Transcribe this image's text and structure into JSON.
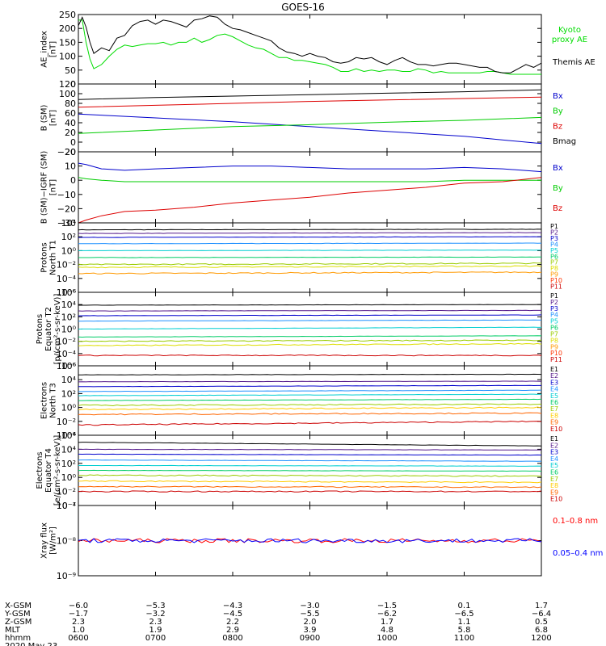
{
  "title": "GOES-16",
  "chart_data": [
    {
      "type": "line",
      "ylabel": "AE_index\n[nT]",
      "ylim": [
        0,
        250
      ],
      "ytick_labels": [
        "0",
        "50",
        "100",
        "150",
        "200",
        "250"
      ],
      "series": [
        {
          "name": "Kyoto proxy AE",
          "color": "#00dd00",
          "x": [
            600,
            605,
            610,
            615,
            620,
            630,
            640,
            650,
            660,
            670,
            680,
            690,
            700,
            710,
            720,
            730,
            740,
            750,
            760,
            770,
            780,
            790,
            800,
            810,
            820,
            830,
            840,
            850,
            860,
            870,
            880,
            890,
            900,
            910,
            920,
            930,
            940,
            950,
            960,
            970,
            980,
            990,
            1000,
            1010,
            1020,
            1030,
            1040,
            1050,
            1060,
            1070,
            1080,
            1090,
            1100,
            1110,
            1120,
            1130,
            1140,
            1150,
            1160,
            1170,
            1180,
            1190,
            1200
          ],
          "y": [
            230,
            230,
            150,
            90,
            55,
            70,
            100,
            125,
            140,
            135,
            140,
            145,
            145,
            150,
            140,
            150,
            150,
            165,
            150,
            160,
            175,
            180,
            170,
            155,
            140,
            130,
            125,
            110,
            95,
            95,
            85,
            85,
            80,
            75,
            70,
            60,
            45,
            45,
            55,
            45,
            50,
            45,
            50,
            50,
            45,
            45,
            55,
            50,
            40,
            45,
            40,
            40,
            40,
            40,
            40,
            45,
            45,
            40,
            35,
            35,
            35,
            35,
            35
          ]
        },
        {
          "name": "Themis AE",
          "color": "#000000",
          "x": [
            600,
            605,
            610,
            615,
            620,
            630,
            640,
            650,
            660,
            670,
            680,
            690,
            700,
            710,
            720,
            730,
            740,
            750,
            760,
            770,
            780,
            790,
            800,
            810,
            820,
            830,
            840,
            850,
            860,
            870,
            880,
            890,
            900,
            910,
            920,
            930,
            940,
            950,
            960,
            970,
            980,
            990,
            1000,
            1010,
            1020,
            1030,
            1040,
            1050,
            1060,
            1070,
            1080,
            1090,
            1100,
            1110,
            1120,
            1130,
            1140,
            1150,
            1160,
            1170,
            1180,
            1190,
            1200
          ],
          "y": [
            210,
            240,
            205,
            150,
            110,
            130,
            120,
            165,
            175,
            210,
            225,
            230,
            215,
            230,
            225,
            215,
            205,
            230,
            235,
            245,
            240,
            215,
            200,
            195,
            185,
            175,
            165,
            155,
            130,
            115,
            110,
            100,
            110,
            100,
            95,
            80,
            75,
            80,
            95,
            90,
            95,
            80,
            70,
            85,
            95,
            80,
            70,
            70,
            65,
            70,
            75,
            75,
            70,
            65,
            60,
            60,
            45,
            40,
            40,
            55,
            70,
            60,
            75
          ]
        }
      ],
      "legend": [
        "Kyoto proxy AE",
        "Themis AE"
      ]
    },
    {
      "type": "line",
      "ylabel": "B (SM)\n[nT]",
      "ylim": [
        -20,
        120
      ],
      "ytick_labels": [
        "−20",
        "0",
        "20",
        "40",
        "60",
        "80",
        "100",
        "120"
      ],
      "series": [
        {
          "name": "Bx",
          "color": "#0000cc",
          "x": [
            600,
            700,
            800,
            900,
            1000,
            1100,
            1200
          ],
          "y": [
            58,
            50,
            42,
            32,
            22,
            12,
            -3
          ]
        },
        {
          "name": "By",
          "color": "#00cc00",
          "x": [
            600,
            700,
            800,
            900,
            1000,
            1100,
            1200
          ],
          "y": [
            18,
            25,
            32,
            36,
            41,
            45,
            51
          ]
        },
        {
          "name": "Bz",
          "color": "#dd0000",
          "x": [
            600,
            700,
            800,
            900,
            1000,
            1100,
            1200
          ],
          "y": [
            72,
            76,
            80,
            84,
            87,
            90,
            93
          ]
        },
        {
          "name": "Bmag",
          "color": "#000000",
          "x": [
            600,
            700,
            800,
            900,
            1000,
            1100,
            1200
          ],
          "y": [
            88,
            92,
            95,
            98,
            101,
            104,
            108
          ]
        }
      ],
      "legend": [
        "Bx",
        "By",
        "Bz",
        "Bmag"
      ]
    },
    {
      "type": "line",
      "ylabel": "B (SM)−IGRF (SM)\n[nT]",
      "ylim": [
        -30,
        20
      ],
      "ytick_labels": [
        "−30",
        "−20",
        "−10",
        "0",
        "10",
        "20"
      ],
      "series": [
        {
          "name": "Bx",
          "color": "#0000cc",
          "x": [
            600,
            610,
            630,
            660,
            700,
            750,
            800,
            850,
            900,
            950,
            1000,
            1050,
            1100,
            1150,
            1200
          ],
          "y": [
            12,
            11,
            8,
            7,
            8,
            9,
            10,
            10,
            9,
            8,
            8,
            8,
            9,
            8,
            6
          ]
        },
        {
          "name": "By",
          "color": "#00cc00",
          "x": [
            600,
            610,
            630,
            660,
            700,
            750,
            800,
            850,
            900,
            950,
            1000,
            1050,
            1100,
            1150,
            1200
          ],
          "y": [
            2,
            1,
            0,
            -1,
            -1,
            -1,
            -1,
            -1,
            -1,
            -1,
            -1,
            -1,
            0,
            0,
            0
          ]
        },
        {
          "name": "Bz",
          "color": "#dd0000",
          "x": [
            600,
            610,
            630,
            660,
            700,
            750,
            800,
            850,
            900,
            950,
            1000,
            1050,
            1100,
            1150,
            1200
          ],
          "y": [
            -30,
            -28,
            -25,
            -22,
            -21,
            -19,
            -16,
            -14,
            -12,
            -9,
            -7,
            -5,
            -2,
            -1,
            2
          ]
        }
      ],
      "legend": [
        "Bx",
        "By",
        "Bz"
      ]
    },
    {
      "type": "line",
      "log": true,
      "ylabel": "Protons\nNorth T1",
      "ylim": [
        1e-06,
        10000.0
      ],
      "ytick_labels": [
        "10⁻⁶",
        "10⁻⁴",
        "10⁻²",
        "10⁰",
        "10²",
        "10⁴"
      ],
      "series": [
        {
          "name": "P1",
          "color": "#000000",
          "y": [
            1000,
            1200
          ]
        },
        {
          "name": "P2",
          "color": "#551a8b",
          "y": [
            300,
            400
          ]
        },
        {
          "name": "P3",
          "color": "#0000cc",
          "y": [
            80,
            100
          ]
        },
        {
          "name": "P4",
          "color": "#1e90ff",
          "y": [
            10,
            12
          ]
        },
        {
          "name": "P5",
          "color": "#00ced1",
          "y": [
            1,
            1.2
          ]
        },
        {
          "name": "P6",
          "color": "#00cc66",
          "y": [
            0.1,
            0.12
          ]
        },
        {
          "name": "P7",
          "color": "#99cc00",
          "y": [
            0.01,
            0.015
          ]
        },
        {
          "name": "P8",
          "color": "#dddd00",
          "y": [
            0.004,
            0.006
          ]
        },
        {
          "name": "P9",
          "color": "#ff9900",
          "y": [
            0.0005,
            0.0008
          ]
        },
        {
          "name": "P10",
          "color": "#ff3300",
          "y": []
        },
        {
          "name": "P11",
          "color": "#cc0000",
          "y": []
        }
      ],
      "legend": [
        "P1",
        "P2",
        "P3",
        "P4",
        "P5",
        "P6",
        "P7",
        "P8",
        "P9",
        "P10",
        "P11"
      ]
    },
    {
      "type": "line",
      "log": true,
      "ylabel": "Protons\nEquator T2\n[p/(cm²-s-sr-keV)]",
      "ylim": [
        1e-06,
        1000000.0
      ],
      "ytick_labels": [
        "10⁻⁶",
        "10⁻⁴",
        "10⁻²",
        "10⁰",
        "10²",
        "10⁴",
        "10⁶"
      ],
      "series": [
        {
          "name": "P1",
          "color": "#000000",
          "y": [
            8000,
            10000
          ]
        },
        {
          "name": "P2",
          "color": "#551a8b",
          "y": [
            900,
            1100
          ]
        },
        {
          "name": "P3",
          "color": "#0000cc",
          "y": [
            150,
            200
          ]
        },
        {
          "name": "P4",
          "color": "#1e90ff",
          "y": [
            20,
            30
          ]
        },
        {
          "name": "P5",
          "color": "#00ced1",
          "y": [
            1,
            2
          ]
        },
        {
          "name": "P6",
          "color": "#00cc66",
          "y": [
            0.05,
            0.08
          ]
        },
        {
          "name": "P7",
          "color": "#99cc00",
          "y": [
            0.01,
            0.015
          ]
        },
        {
          "name": "P8",
          "color": "#dddd00",
          "y": [
            0.002,
            0.004
          ]
        },
        {
          "name": "P9",
          "color": "#ff9900",
          "y": []
        },
        {
          "name": "P10",
          "color": "#ff3300",
          "y": []
        },
        {
          "name": "P11",
          "color": "#cc0000",
          "y": [
            5e-05,
            5e-05
          ]
        }
      ],
      "legend": [
        "P1",
        "P2",
        "P3",
        "P4",
        "P5",
        "P6",
        "P7",
        "P8",
        "P9",
        "P10",
        "P11"
      ]
    },
    {
      "type": "line",
      "log": true,
      "ylabel": "Electrons\nNorth T3",
      "ylim": [
        0.0001,
        1000000.0
      ],
      "ytick_labels": [
        "10⁻⁴",
        "10⁻²",
        "10⁰",
        "10²",
        "10⁴",
        "10⁶"
      ],
      "series": [
        {
          "name": "E1",
          "color": "#000000",
          "y": [
            50000,
            60000
          ]
        },
        {
          "name": "E2",
          "color": "#551a8b",
          "y": [
            5000,
            6000
          ]
        },
        {
          "name": "E3",
          "color": "#0000cc",
          "y": [
            1000,
            1500
          ]
        },
        {
          "name": "E4",
          "color": "#1e90ff",
          "y": [
            200,
            300
          ]
        },
        {
          "name": "E5",
          "color": "#00ced1",
          "y": [
            50,
            80
          ]
        },
        {
          "name": "E6",
          "color": "#00cc66",
          "y": [
            10,
            15
          ]
        },
        {
          "name": "E7",
          "color": "#99cc00",
          "y": [
            2,
            3
          ]
        },
        {
          "name": "E8",
          "color": "#ffcc00",
          "y": [
            0.5,
            1
          ]
        },
        {
          "name": "E9",
          "color": "#ff6600",
          "y": [
            0.1,
            0.15
          ]
        },
        {
          "name": "E10",
          "color": "#cc0000",
          "y": [
            0.003,
            0.01
          ]
        }
      ],
      "legend": [
        "E1",
        "E2",
        "E3",
        "E4",
        "E5",
        "E6",
        "E7",
        "E8",
        "E9",
        "E10"
      ]
    },
    {
      "type": "line",
      "log": true,
      "ylabel": "Electrons\nEquator T4\n[e/(cm²-s-sr-keV)]",
      "ylim": [
        0.0001,
        1000000.0
      ],
      "ytick_labels": [
        "10⁻⁴",
        "10⁻²",
        "10⁰",
        "10²",
        "10⁴",
        "10⁶"
      ],
      "series": [
        {
          "name": "E1",
          "color": "#000000",
          "y": [
            100000,
            30000
          ]
        },
        {
          "name": "E2",
          "color": "#551a8b",
          "y": [
            10000,
            8000
          ]
        },
        {
          "name": "E3",
          "color": "#0000cc",
          "y": [
            2000,
            1500
          ]
        },
        {
          "name": "E4",
          "color": "#1e90ff",
          "y": [
            300,
            200
          ]
        },
        {
          "name": "E5",
          "color": "#00ced1",
          "y": [
            50,
            40
          ]
        },
        {
          "name": "E6",
          "color": "#00cc66",
          "y": [
            10,
            8
          ]
        },
        {
          "name": "E7",
          "color": "#99cc00",
          "y": [
            2,
            1.5
          ]
        },
        {
          "name": "E8",
          "color": "#ffcc00",
          "y": [
            0.3,
            0.2
          ]
        },
        {
          "name": "E9",
          "color": "#ff6600",
          "y": [
            0.05,
            0.04
          ]
        },
        {
          "name": "E10",
          "color": "#cc0000",
          "y": [
            0.01,
            0.01
          ]
        }
      ],
      "legend": [
        "E1",
        "E2",
        "E3",
        "E4",
        "E5",
        "E6",
        "E7",
        "E8",
        "E9",
        "E10"
      ]
    },
    {
      "type": "line",
      "log": true,
      "ylabel": "Xray flux\n[W/m²]",
      "ylim": [
        1e-09,
        1e-07
      ],
      "ytick_labels": [
        "10⁻⁹",
        "10⁻⁸",
        "10⁻⁷"
      ],
      "series": [
        {
          "name": "0.1–0.8 nm",
          "color": "#ff0000",
          "y": [
            1e-08,
            1e-08
          ]
        },
        {
          "name": "0.05–0.4 nm",
          "color": "#0000ff",
          "y": [
            1e-08,
            1e-08
          ]
        }
      ],
      "legend": [
        "0.1–0.8 nm",
        "0.05–0.4 nm"
      ]
    }
  ],
  "x_axis": {
    "xlim": [
      600,
      1200
    ],
    "row_labels": [
      "X-GSM",
      "Y-GSM",
      "Z-GSM",
      "MLT",
      "hhmm"
    ],
    "columns": [
      {
        "time": 600,
        "vals": [
          "−6.0",
          "−1.7",
          "2.3",
          "1.0",
          "0600"
        ]
      },
      {
        "time": 700,
        "vals": [
          "−5.3",
          "−3.2",
          "2.3",
          "1.9",
          "0700"
        ]
      },
      {
        "time": 800,
        "vals": [
          "−4.3",
          "−4.5",
          "2.2",
          "2.9",
          "0800"
        ]
      },
      {
        "time": 900,
        "vals": [
          "−3.0",
          "−5.5",
          "2.0",
          "3.9",
          "0900"
        ]
      },
      {
        "time": 1000,
        "vals": [
          "−1.5",
          "−6.2",
          "1.7",
          "4.8",
          "1000"
        ]
      },
      {
        "time": 1100,
        "vals": [
          "0.1",
          "−6.5",
          "1.1",
          "5.8",
          "1100"
        ]
      },
      {
        "time": 1200,
        "vals": [
          "1.7",
          "−6.4",
          "0.5",
          "6.8",
          "1200"
        ]
      }
    ],
    "date": "2020 May 23"
  }
}
